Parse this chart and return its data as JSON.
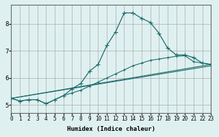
{
  "xlabel": "Humidex (Indice chaleur)",
  "ylabel": "",
  "bg_color": "#dff0f0",
  "grid_color": "#aaaaaa",
  "line_color": "#1a6b6b",
  "xlim": [
    0,
    23
  ],
  "ylim": [
    4.7,
    8.7
  ],
  "xticks": [
    0,
    1,
    2,
    3,
    4,
    5,
    6,
    7,
    8,
    9,
    10,
    11,
    12,
    13,
    14,
    15,
    16,
    17,
    18,
    19,
    20,
    21,
    22,
    23
  ],
  "yticks": [
    5,
    6,
    7,
    8
  ],
  "series1_x": [
    0,
    1,
    2,
    3,
    4,
    5,
    6,
    7,
    8,
    9,
    10,
    11,
    12,
    13,
    14,
    15,
    16,
    17,
    18,
    19,
    20,
    21,
    22,
    23
  ],
  "series1_y": [
    5.25,
    5.15,
    5.2,
    5.2,
    5.05,
    5.2,
    5.35,
    5.6,
    5.8,
    6.25,
    6.5,
    7.2,
    7.7,
    8.4,
    8.4,
    8.2,
    8.05,
    7.65,
    7.1,
    6.85,
    6.85,
    6.75,
    6.55,
    6.5
  ],
  "series2_x": [
    0,
    1,
    2,
    3,
    4,
    5,
    6,
    7,
    8,
    9,
    10,
    11,
    12,
    13,
    14,
    15,
    16,
    17,
    18,
    19,
    20,
    21,
    22,
    23
  ],
  "series2_y": [
    5.25,
    5.15,
    5.2,
    5.2,
    5.05,
    5.2,
    5.35,
    5.45,
    5.55,
    5.7,
    5.85,
    6.0,
    6.15,
    6.3,
    6.45,
    6.55,
    6.65,
    6.7,
    6.75,
    6.8,
    6.82,
    6.6,
    6.55,
    6.5
  ],
  "series3_x": [
    0,
    23
  ],
  "series3_y": [
    5.25,
    6.5
  ],
  "series4_x": [
    0,
    23
  ],
  "series4_y": [
    5.25,
    6.45
  ]
}
